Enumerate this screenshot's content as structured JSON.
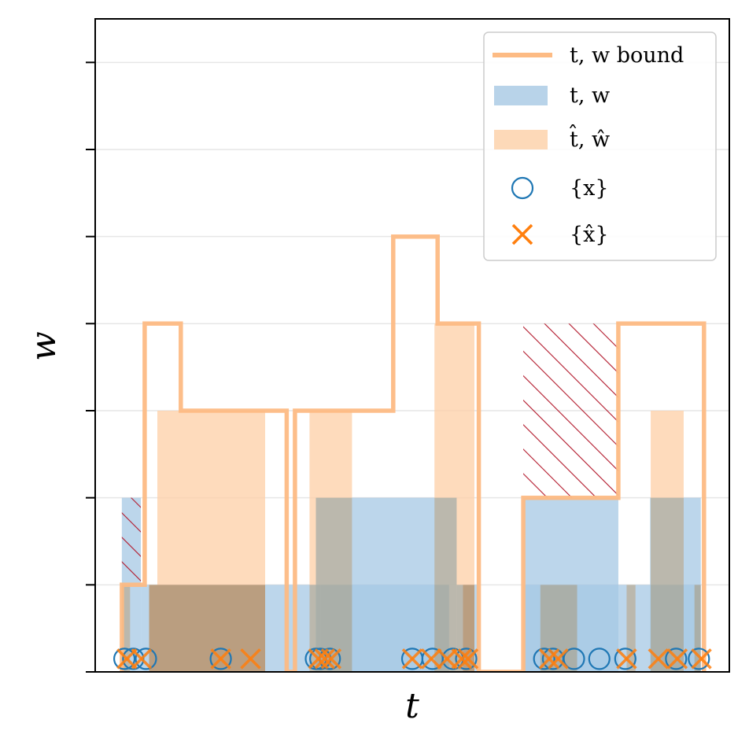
{
  "chart_data": {
    "type": "step",
    "xlabel": "t",
    "ylabel": "w",
    "xlim": [
      0,
      100
    ],
    "ylim": [
      0,
      7.5
    ],
    "yticks": [
      0,
      1,
      2,
      3,
      4,
      5,
      6,
      7
    ],
    "grid": "horizontal",
    "legend_position": "top-right",
    "legend": [
      {
        "key": "bound",
        "label": "t, w bound",
        "kind": "line"
      },
      {
        "key": "tw",
        "label": "t, w",
        "kind": "patch"
      },
      {
        "key": "thw",
        "label": "t̂, ŵ",
        "kind": "patch"
      },
      {
        "key": "x",
        "label": "{x}",
        "kind": "circle"
      },
      {
        "key": "xhat",
        "label": "{x̂}",
        "kind": "cross"
      }
    ],
    "colors": {
      "bound": "#fdbb84",
      "tw": "#a6c8e4",
      "thw": "#fdcfa6",
      "x": "#1f77b4",
      "xhat": "#ff7f0e",
      "hatch": "#b2182b"
    },
    "tw_bars": [
      {
        "x0": 4.2,
        "x1": 7.2,
        "h": 2
      },
      {
        "x0": 7.2,
        "x1": 35.5,
        "h": 1
      },
      {
        "x0": 35.5,
        "x1": 55.8,
        "h": 1
      },
      {
        "x0": 34.8,
        "x1": 57.0,
        "h": 2
      },
      {
        "x0": 57.0,
        "x1": 60.5,
        "h": 1
      },
      {
        "x0": 67.5,
        "x1": 82.5,
        "h": 2
      },
      {
        "x0": 67.5,
        "x1": 95.5,
        "h": 1
      },
      {
        "x0": 87.5,
        "x1": 95.5,
        "h": 2
      }
    ],
    "thw_bars": [
      {
        "x0": 4.2,
        "x1": 5.5,
        "h": 1
      },
      {
        "x0": 8.5,
        "x1": 9.8,
        "h": 1
      },
      {
        "x0": 9.8,
        "x1": 26.8,
        "h": 3
      },
      {
        "x0": 8.5,
        "x1": 26.8,
        "h": 1
      },
      {
        "x0": 33.8,
        "x1": 40.5,
        "h": 3
      },
      {
        "x0": 53.5,
        "x1": 59.8,
        "h": 4
      },
      {
        "x0": 58.0,
        "x1": 59.8,
        "h": 1
      },
      {
        "x0": 70.2,
        "x1": 76.0,
        "h": 1
      },
      {
        "x0": 83.8,
        "x1": 85.2,
        "h": 1
      },
      {
        "x0": 87.6,
        "x1": 92.8,
        "h": 3
      },
      {
        "x0": 94.5,
        "x1": 95.5,
        "h": 1
      }
    ],
    "bound_step": {
      "x": [
        4.2,
        4.2,
        7.8,
        7.8,
        13.5,
        13.5,
        30.2,
        30.2,
        31.5,
        31.5,
        47.0,
        47.0,
        54.0,
        54.0,
        60.5,
        60.5,
        67.5,
        67.5,
        82.5,
        82.5,
        96.0,
        96.0
      ],
      "y": [
        0,
        1,
        1,
        4,
        4,
        3,
        3,
        0,
        0,
        3,
        3,
        5,
        5,
        4,
        4,
        0,
        0,
        2,
        2,
        4,
        4,
        0
      ]
    },
    "hatched": [
      {
        "x0": 4.2,
        "x1": 7.2,
        "y0": 1,
        "y1": 2
      },
      {
        "x0": 67.5,
        "x1": 82.5,
        "y0": 2,
        "y1": 4
      }
    ],
    "x_points": [
      4.6,
      6.0,
      8.0,
      19.8,
      34.8,
      35.5,
      37.0,
      50.0,
      53.2,
      56.4,
      58.5,
      70.8,
      72.2,
      75.5,
      79.5,
      83.6,
      91.6,
      95.2
    ],
    "xhat_points": [
      5.0,
      7.3,
      19.8,
      24.5,
      35.2,
      36.2,
      37.2,
      50.0,
      53.0,
      55.5,
      57.8,
      58.8,
      71.6,
      73.0,
      83.8,
      88.8,
      91.8,
      95.6
    ]
  }
}
